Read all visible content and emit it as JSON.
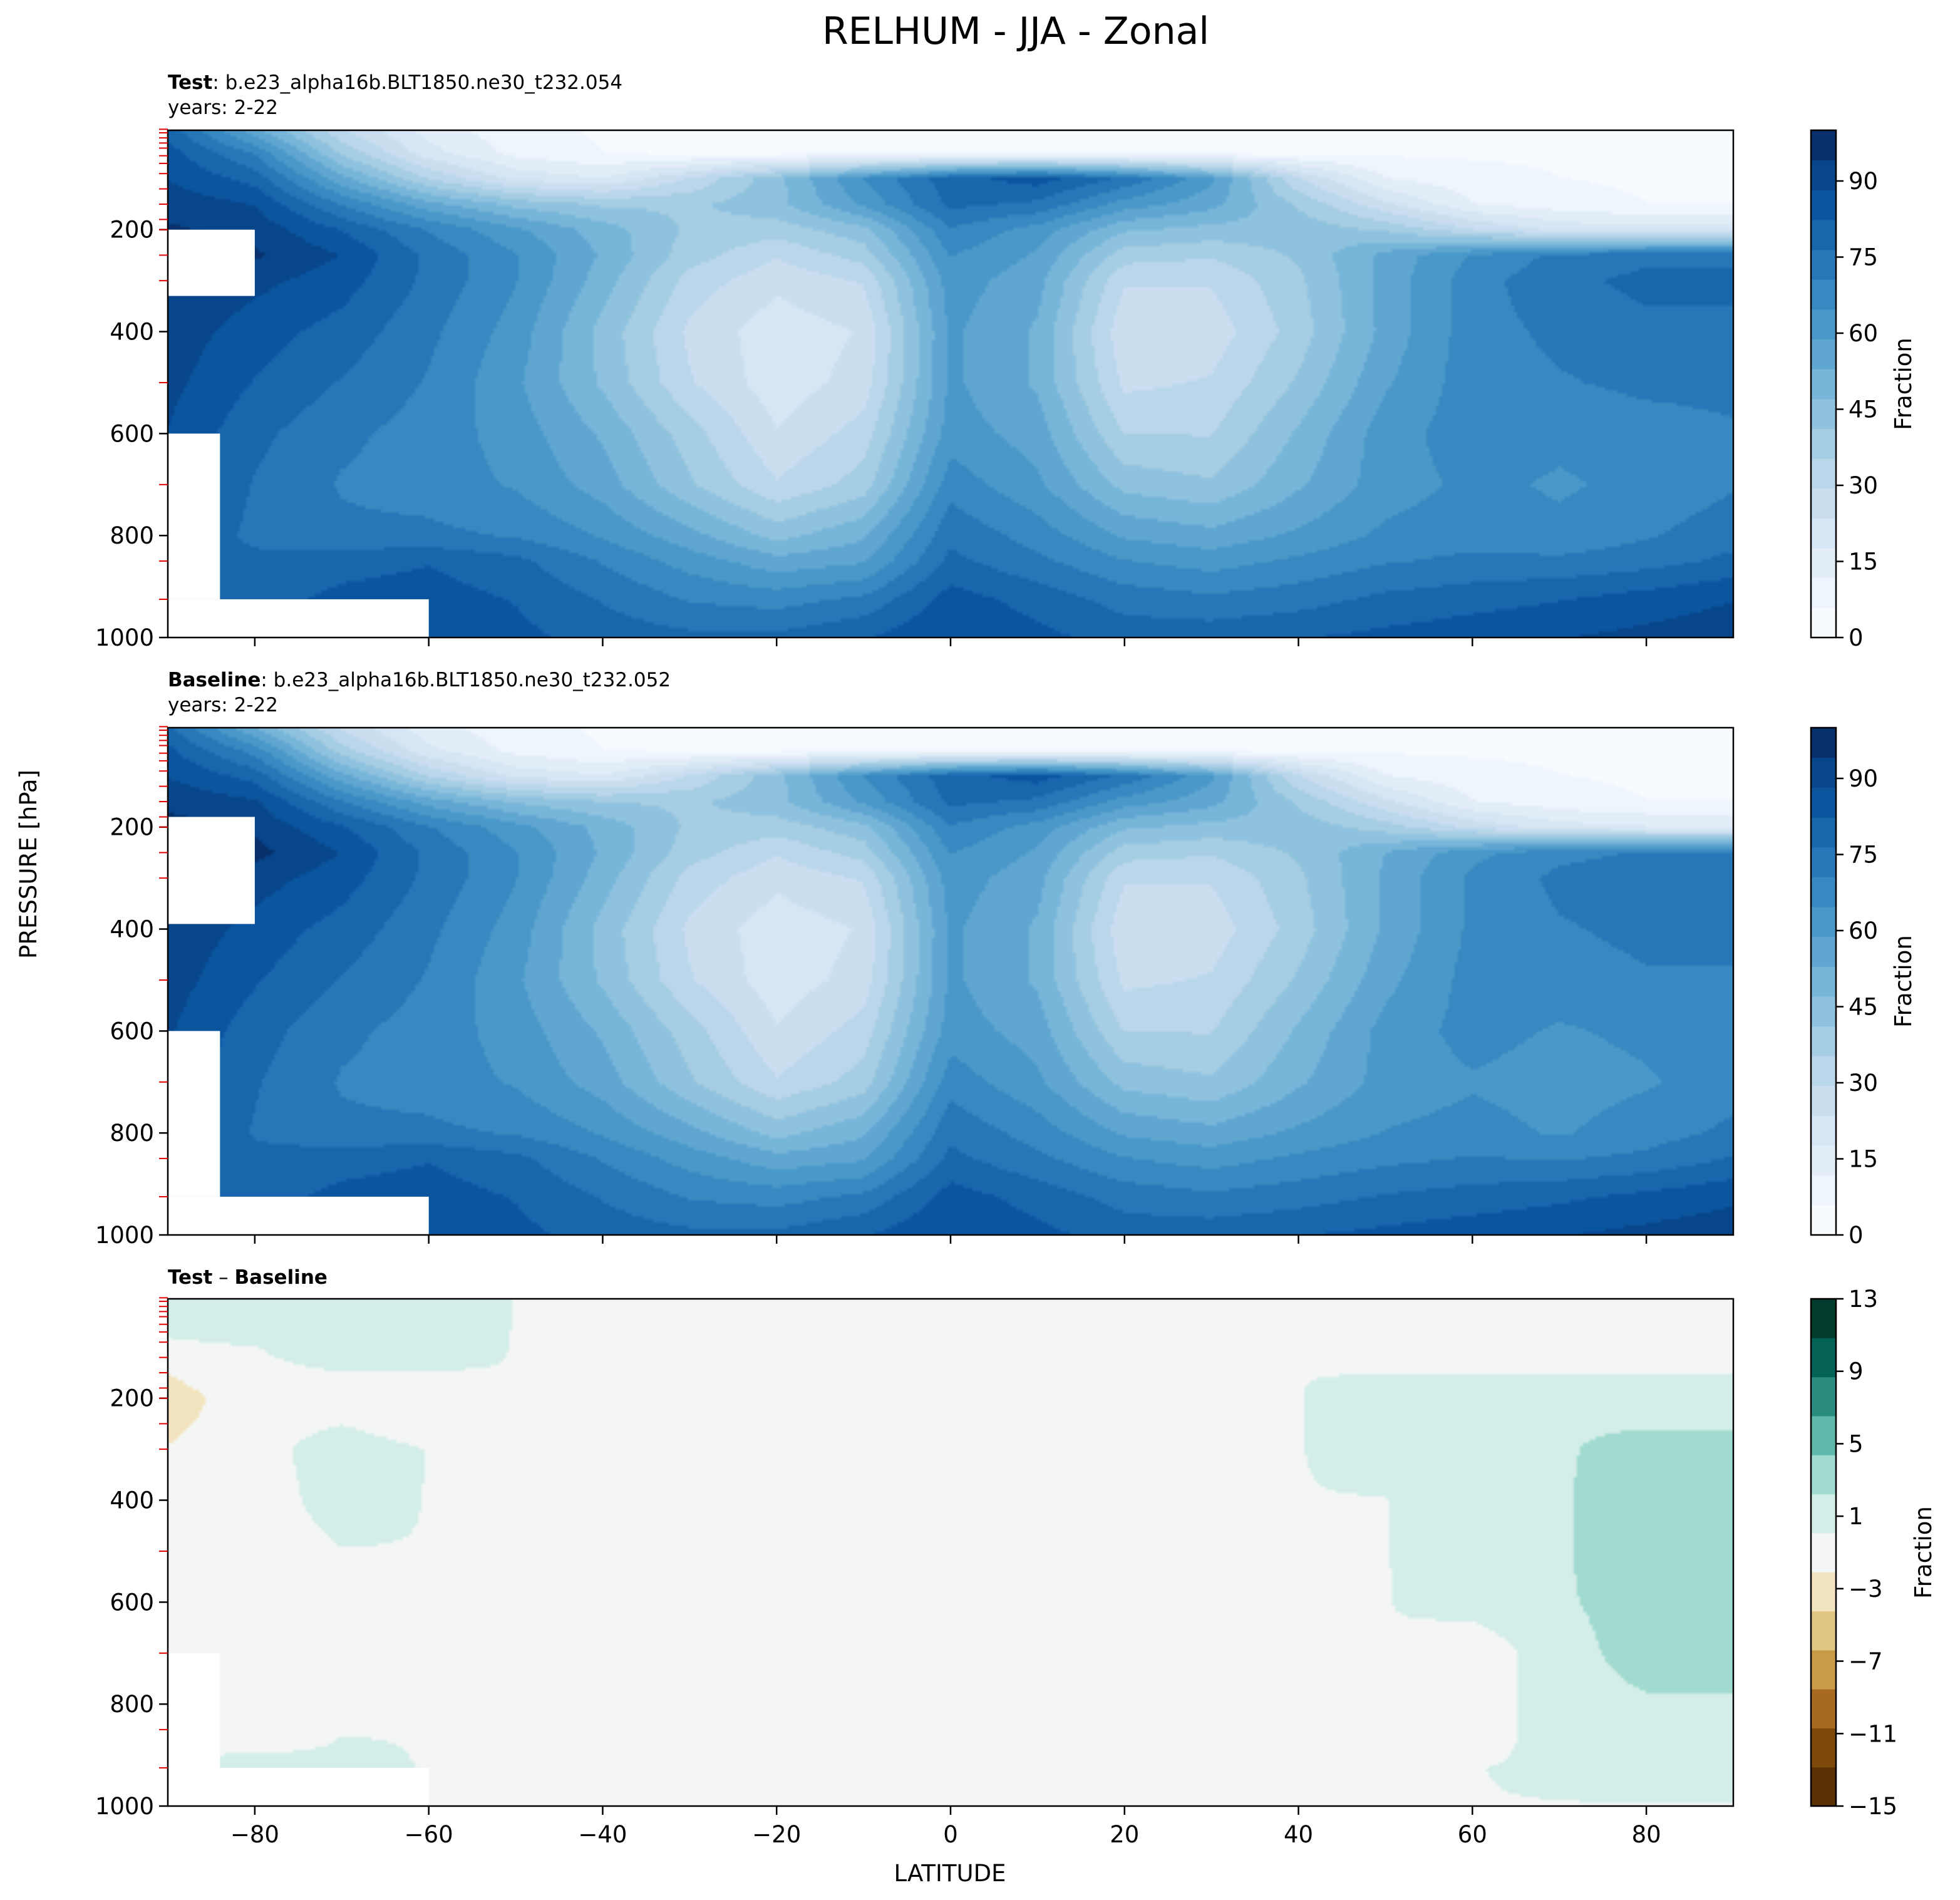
{
  "title": "RELHUM - JJA - Zonal",
  "ylabel": "PRESSURE [hPa]",
  "xlabel": "LATITUDE",
  "colors": {
    "blues": [
      "#f7fbff",
      "#eef5fc",
      "#e2edf8",
      "#d6e6f4",
      "#cadef0",
      "#bad6eb",
      "#a5cde3",
      "#8fc2de",
      "#77b5d9",
      "#5fa6d1",
      "#4a98c9",
      "#3888c1",
      "#2777b8",
      "#1966ad",
      "#0b559f",
      "#08468b",
      "#08306b"
    ],
    "diverging": [
      "#5a3005",
      "#7e4a0b",
      "#a76b1f",
      "#c99a47",
      "#e2c683",
      "#f2e4bf",
      "#f4f6f5",
      "#d3eee9",
      "#a1dbcf",
      "#5fb8a9",
      "#2a8c7e",
      "#046155",
      "#013b2e"
    ]
  },
  "chart_data": [
    {
      "type": "heatmap",
      "panel": "test",
      "label_bold": "Test",
      "label_rest": ": b.e23_alpha16b.BLT1850.ne30_t232.054",
      "years": "years: 2-22",
      "x": [
        -90,
        -80,
        -70,
        -60,
        -50,
        -40,
        -30,
        -20,
        -10,
        0,
        10,
        20,
        30,
        40,
        50,
        60,
        70,
        80,
        90
      ],
      "y": [
        5,
        50,
        100,
        150,
        200,
        250,
        300,
        400,
        500,
        600,
        700,
        800,
        850,
        925,
        1000
      ],
      "xlim": [
        -90,
        90
      ],
      "ylim": [
        1000,
        5
      ],
      "levels": [
        0,
        100
      ],
      "colorbar_ticks": [
        "0",
        "15",
        "30",
        "45",
        "60",
        "75",
        "90"
      ],
      "colorbar_label": "Fraction",
      "yticks": [
        "200",
        "400",
        "600",
        "800",
        "1000"
      ],
      "values": [
        [
          80,
          55,
          30,
          15,
          8,
          5,
          5,
          5,
          5,
          5,
          5,
          5,
          5,
          5,
          5,
          5,
          5,
          5,
          5
        ],
        [
          85,
          70,
          40,
          20,
          10,
          6,
          5,
          5,
          5,
          5,
          5,
          5,
          5,
          5,
          5,
          5,
          5,
          5,
          5
        ],
        [
          88,
          80,
          55,
          35,
          22,
          18,
          30,
          45,
          65,
          80,
          85,
          75,
          60,
          30,
          12,
          8,
          6,
          5,
          5
        ],
        [
          92,
          88,
          70,
          55,
          45,
          40,
          40,
          45,
          60,
          78,
          75,
          62,
          55,
          40,
          25,
          12,
          8,
          6,
          6
        ],
        [
          95,
          92,
          82,
          70,
          60,
          50,
          40,
          38,
          45,
          70,
          62,
          48,
          45,
          45,
          40,
          30,
          22,
          20,
          20
        ],
        [
          98,
          95,
          88,
          75,
          65,
          52,
          38,
          30,
          38,
          65,
          58,
          38,
          36,
          42,
          55,
          65,
          72,
          75,
          75
        ],
        [
          95,
          90,
          85,
          75,
          65,
          50,
          33,
          25,
          30,
          62,
          55,
          30,
          30,
          40,
          55,
          68,
          75,
          78,
          78
        ],
        [
          92,
          85,
          80,
          72,
          62,
          45,
          28,
          20,
          24,
          60,
          52,
          25,
          26,
          38,
          55,
          68,
          72,
          75,
          75
        ],
        [
          90,
          82,
          76,
          70,
          60,
          46,
          30,
          20,
          26,
          60,
          52,
          28,
          30,
          42,
          58,
          68,
          70,
          72,
          72
        ],
        [
          88,
          78,
          72,
          68,
          62,
          52,
          38,
          24,
          32,
          62,
          56,
          35,
          35,
          48,
          62,
          68,
          66,
          68,
          70
        ],
        [
          85,
          76,
          70,
          68,
          64,
          56,
          42,
          30,
          38,
          68,
          60,
          45,
          42,
          52,
          62,
          66,
          64,
          66,
          70
        ],
        [
          82,
          75,
          72,
          72,
          70,
          64,
          55,
          45,
          52,
          75,
          68,
          58,
          55,
          60,
          66,
          68,
          66,
          70,
          74
        ],
        [
          80,
          78,
          80,
          82,
          78,
          70,
          62,
          55,
          58,
          78,
          72,
          65,
          62,
          66,
          70,
          72,
          72,
          74,
          78
        ],
        [
          78,
          80,
          84,
          85,
          82,
          76,
          70,
          68,
          72,
          85,
          80,
          74,
          72,
          74,
          78,
          80,
          82,
          85,
          88
        ],
        [
          75,
          80,
          85,
          86,
          84,
          80,
          78,
          78,
          82,
          88,
          84,
          80,
          80,
          82,
          84,
          86,
          88,
          90,
          92
        ]
      ],
      "mask": [
        {
          "xmin": -90,
          "xmax": -60,
          "ymin": 925,
          "ymax": 1000
        },
        {
          "xmin": -90,
          "xmax": -84,
          "ymin": 600,
          "ymax": 925
        },
        {
          "xmin": -90,
          "xmax": -80,
          "ymin": 200,
          "ymax": 330
        }
      ]
    },
    {
      "type": "heatmap",
      "panel": "baseline",
      "label_bold": "Baseline",
      "label_rest": ": b.e23_alpha16b.BLT1850.ne30_t232.052",
      "years": "years: 2-22",
      "x": [
        -90,
        -80,
        -70,
        -60,
        -50,
        -40,
        -30,
        -20,
        -10,
        0,
        10,
        20,
        30,
        40,
        50,
        60,
        70,
        80,
        90
      ],
      "y": [
        5,
        50,
        100,
        150,
        200,
        250,
        300,
        400,
        500,
        600,
        700,
        800,
        850,
        925,
        1000
      ],
      "xlim": [
        -90,
        90
      ],
      "ylim": [
        1000,
        5
      ],
      "levels": [
        0,
        100
      ],
      "colorbar_ticks": [
        "0",
        "15",
        "30",
        "45",
        "60",
        "75",
        "90"
      ],
      "colorbar_label": "Fraction",
      "yticks": [
        "200",
        "400",
        "600",
        "800",
        "1000"
      ],
      "values": [
        [
          78,
          53,
          28,
          14,
          8,
          5,
          5,
          5,
          5,
          5,
          5,
          5,
          5,
          5,
          5,
          5,
          5,
          5,
          5
        ],
        [
          84,
          68,
          38,
          19,
          10,
          6,
          5,
          5,
          5,
          5,
          5,
          5,
          5,
          5,
          5,
          5,
          5,
          5,
          5
        ],
        [
          88,
          80,
          55,
          35,
          22,
          18,
          30,
          45,
          65,
          80,
          85,
          75,
          60,
          30,
          12,
          8,
          6,
          5,
          5
        ],
        [
          93,
          89,
          71,
          56,
          46,
          41,
          40,
          45,
          60,
          78,
          75,
          62,
          55,
          40,
          25,
          12,
          8,
          6,
          6
        ],
        [
          96,
          93,
          83,
          71,
          61,
          51,
          40,
          38,
          45,
          70,
          62,
          48,
          45,
          45,
          38,
          28,
          20,
          18,
          18
        ],
        [
          99,
          96,
          88,
          75,
          65,
          52,
          38,
          30,
          38,
          65,
          58,
          38,
          36,
          42,
          53,
          63,
          69,
          71,
          71
        ],
        [
          96,
          91,
          85,
          75,
          65,
          50,
          33,
          25,
          30,
          62,
          55,
          30,
          30,
          40,
          54,
          66,
          72,
          74,
          74
        ],
        [
          93,
          86,
          80,
          72,
          62,
          45,
          28,
          20,
          24,
          60,
          52,
          25,
          26,
          38,
          54,
          66,
          70,
          72,
          72
        ],
        [
          91,
          83,
          76,
          70,
          60,
          46,
          30,
          20,
          26,
          60,
          52,
          28,
          30,
          42,
          57,
          67,
          68,
          70,
          70
        ],
        [
          89,
          79,
          72,
          68,
          62,
          52,
          38,
          24,
          32,
          62,
          56,
          35,
          35,
          48,
          61,
          67,
          64,
          66,
          68
        ],
        [
          86,
          77,
          70,
          68,
          64,
          56,
          42,
          30,
          38,
          68,
          60,
          45,
          42,
          52,
          61,
          64,
          62,
          64,
          68
        ],
        [
          83,
          76,
          72,
          72,
          70,
          64,
          55,
          45,
          52,
          75,
          68,
          58,
          55,
          60,
          65,
          67,
          64,
          68,
          72
        ],
        [
          80,
          78,
          80,
          82,
          78,
          70,
          62,
          55,
          58,
          78,
          72,
          65,
          62,
          66,
          69,
          71,
          70,
          72,
          77
        ],
        [
          78,
          80,
          84,
          85,
          82,
          76,
          70,
          68,
          72,
          85,
          80,
          74,
          72,
          74,
          77,
          79,
          81,
          84,
          87
        ],
        [
          75,
          80,
          85,
          86,
          84,
          80,
          78,
          78,
          82,
          88,
          84,
          80,
          80,
          82,
          84,
          86,
          88,
          90,
          92
        ]
      ],
      "mask": [
        {
          "xmin": -90,
          "xmax": -60,
          "ymin": 925,
          "ymax": 1000
        },
        {
          "xmin": -90,
          "xmax": -84,
          "ymin": 600,
          "ymax": 925
        },
        {
          "xmin": -90,
          "xmax": -80,
          "ymin": 180,
          "ymax": 390
        }
      ]
    },
    {
      "type": "heatmap",
      "panel": "difference",
      "label_bold": "Test",
      "label_op": " – ",
      "label_bold2": "Baseline",
      "x": [
        -90,
        -80,
        -70,
        -60,
        -50,
        -40,
        -30,
        -20,
        -10,
        0,
        10,
        20,
        30,
        40,
        50,
        60,
        70,
        80,
        90
      ],
      "y": [
        5,
        50,
        100,
        150,
        200,
        250,
        300,
        400,
        500,
        600,
        700,
        800,
        850,
        925,
        1000
      ],
      "xlim": [
        -90,
        90
      ],
      "ylim": [
        1000,
        5
      ],
      "levels": [
        -15,
        13
      ],
      "colorbar_ticks": [
        "13",
        "9",
        "5",
        "1",
        "−3",
        "−7",
        "−11",
        "−15"
      ],
      "colorbar_label": "Fraction",
      "yticks": [
        "200",
        "400",
        "600",
        "800",
        "1000"
      ],
      "xticks": [
        "−80",
        "−60",
        "−40",
        "−20",
        "0",
        "20",
        "40",
        "60",
        "80"
      ],
      "values": [
        [
          1.5,
          2,
          2,
          1.5,
          0,
          0,
          0,
          0,
          0,
          0,
          0,
          0,
          0,
          0,
          0,
          0,
          0,
          0,
          0
        ],
        [
          1,
          2,
          2,
          1.5,
          0,
          0,
          0,
          0,
          0,
          0,
          0,
          0,
          0,
          0,
          0,
          0,
          0,
          0,
          0
        ],
        [
          -0.5,
          0,
          1.5,
          1,
          0,
          0,
          0,
          0,
          0,
          0,
          0,
          0,
          0,
          0,
          0,
          0,
          0,
          0,
          0
        ],
        [
          -2,
          -0.5,
          0,
          0,
          0,
          0,
          0,
          0,
          0,
          0,
          0,
          0,
          0,
          0,
          0,
          0,
          0,
          0,
          0
        ],
        [
          -3,
          -1,
          -1.5,
          -1.5,
          -1.5,
          -1,
          0,
          0,
          0,
          0,
          0,
          0,
          0,
          0,
          1.5,
          1.5,
          1.5,
          1.5,
          1.5
        ],
        [
          -2.5,
          -1,
          0,
          -1.5,
          -1.5,
          -1,
          0,
          0,
          0,
          0,
          0,
          0,
          0,
          0,
          1.5,
          2,
          2,
          2,
          2
        ],
        [
          -2,
          -1,
          1.5,
          0,
          0,
          0,
          0,
          0,
          0,
          0,
          0,
          0,
          0,
          0,
          1,
          1.5,
          2,
          3,
          3
        ],
        [
          -1.5,
          -1,
          1,
          0,
          0,
          0,
          0,
          0,
          0,
          0,
          0,
          0,
          0,
          0,
          0,
          1.5,
          2,
          3.5,
          3.5
        ],
        [
          -1.5,
          -1,
          0,
          0,
          0,
          0,
          0,
          0,
          0,
          0,
          0,
          0,
          0,
          0,
          0,
          1.5,
          2,
          3.5,
          3.5
        ],
        [
          -1.5,
          -1,
          0,
          0,
          0,
          0,
          0,
          0,
          0,
          0,
          0,
          0,
          0,
          0,
          0,
          1,
          2,
          3,
          3
        ],
        [
          -1,
          -1,
          0,
          0,
          0,
          0,
          0,
          0,
          0,
          0,
          0,
          0,
          0,
          0,
          0,
          -1.5,
          1.5,
          3,
          3
        ],
        [
          -1,
          -1.5,
          0,
          0,
          0,
          0,
          0,
          0,
          0,
          0,
          0,
          0,
          0,
          0,
          0,
          -1.5,
          1.5,
          2,
          2
        ],
        [
          0,
          -1.5,
          0,
          0,
          0,
          0,
          0,
          0,
          0,
          0,
          0,
          0,
          0,
          0,
          0,
          -1.5,
          1.5,
          2,
          2
        ],
        [
          0,
          1,
          0.5,
          0,
          0,
          0,
          0,
          0,
          0,
          0,
          0,
          0,
          0,
          0,
          0,
          0,
          0.5,
          1,
          1
        ],
        [
          0,
          0.5,
          0,
          0,
          0,
          0,
          0,
          0,
          0,
          0,
          0,
          0,
          0,
          0,
          0,
          0,
          0,
          0,
          0
        ]
      ],
      "mask": [
        {
          "xmin": -90,
          "xmax": -60,
          "ymin": 925,
          "ymax": 1000
        },
        {
          "xmin": -90,
          "xmax": -84,
          "ymin": 700,
          "ymax": 925
        }
      ]
    }
  ]
}
